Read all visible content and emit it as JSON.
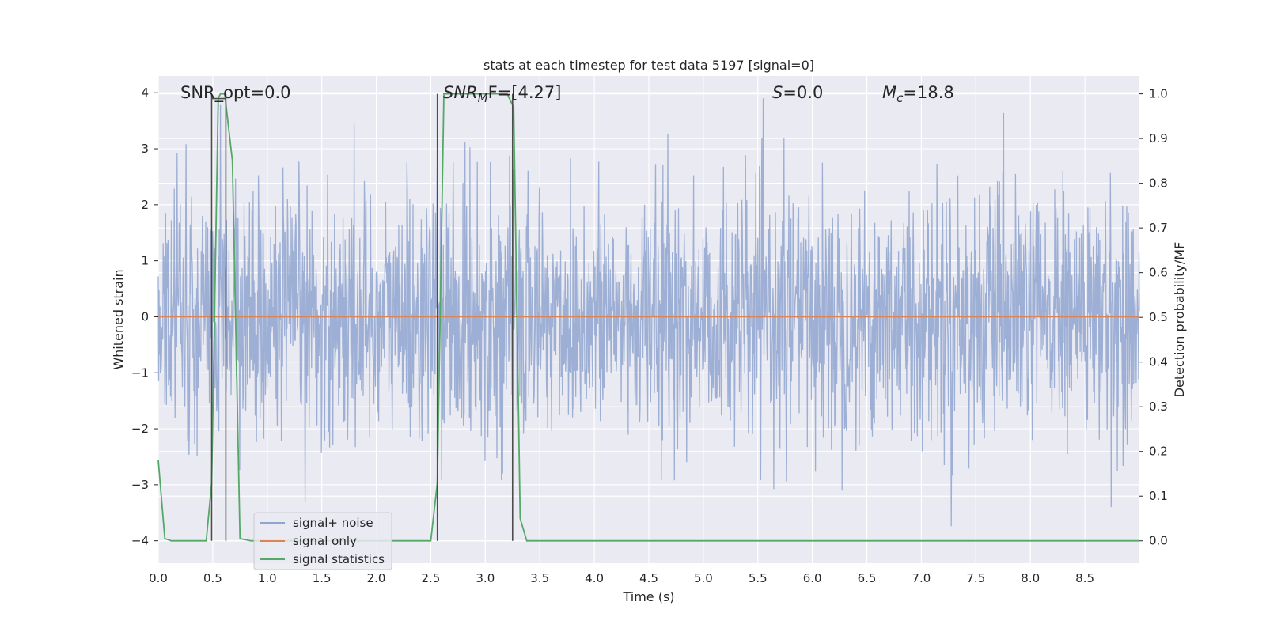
{
  "chart_data": {
    "type": "line",
    "title": "stats at each timestep for test data 5197 [signal=0]",
    "xlabel": "Time (s)",
    "ylabel": "Whitened strain",
    "ylabel_right": "Detection probability/MF",
    "xlim": [
      0.0,
      9.0
    ],
    "ylim": [
      -4.4,
      4.3
    ],
    "ylim_right": [
      -0.05,
      1.04
    ],
    "x_ticks": [
      "0.0",
      "0.5",
      "1.0",
      "1.5",
      "2.0",
      "2.5",
      "3.0",
      "3.5",
      "4.0",
      "4.5",
      "5.0",
      "5.5",
      "6.0",
      "6.5",
      "7.0",
      "7.5",
      "8.0",
      "8.5"
    ],
    "y_ticks": [
      "4",
      "3",
      "2",
      "1",
      "0",
      "−1",
      "−2",
      "−3",
      "−4"
    ],
    "y_ticks_right": [
      "1.0",
      "0.9",
      "0.8",
      "0.7",
      "0.6",
      "0.5",
      "0.4",
      "0.3",
      "0.2",
      "0.1",
      "0.0"
    ],
    "grid": true,
    "legend_position": "lower-left",
    "annotations": {
      "snr_opt": "SNR_opt=0.0",
      "snr_mf_main": "SNR",
      "snr_mf_sub": "M",
      "snr_mf_rest": "F=[4.27]",
      "s_main": "S",
      "s_rest": "=0.0",
      "mc_main": "M",
      "mc_sub": "c",
      "mc_rest": "=18.8"
    },
    "series": [
      {
        "name": "signal+ noise",
        "color": "#8fa5cf",
        "note_values": "whitened noise samples, roughly Gaussian, range about -4 to 3.9",
        "envelope_y": [
          -4,
          3.9
        ]
      },
      {
        "name": "signal only",
        "color": "#dd8452",
        "x": [
          0.0,
          9.0
        ],
        "values": [
          0.0,
          0.0
        ]
      },
      {
        "name": "signal statistics",
        "color": "#55a868",
        "x": [
          0.0,
          0.06,
          0.12,
          0.44,
          0.49,
          0.55,
          0.57,
          0.61,
          0.68,
          0.75,
          0.85,
          2.5,
          2.56,
          2.62,
          3.2,
          3.26,
          3.32,
          3.38,
          9.0
        ],
        "values": [
          0.18,
          0.005,
          0.0,
          0.0,
          0.13,
          0.99,
          1.0,
          1.0,
          0.85,
          0.005,
          0.0,
          0.0,
          0.13,
          1.0,
          1.0,
          0.97,
          0.05,
          0.0,
          0.0
        ]
      }
    ],
    "marker_lines": [
      {
        "x": 0.49,
        "y_top": 1.0,
        "y_bottom": 0.0
      },
      {
        "x": 0.62,
        "y_top": 1.0,
        "y_bottom": 0.0
      },
      {
        "x": 2.56,
        "y_top": 1.0,
        "y_bottom": 0.0
      },
      {
        "x": 3.25,
        "y_top": 1.0,
        "y_bottom": 0.0
      }
    ]
  },
  "colors": {
    "plot_bg": "#eaeaf2",
    "grid": "#ffffff",
    "marker": "#4d4d4d"
  }
}
